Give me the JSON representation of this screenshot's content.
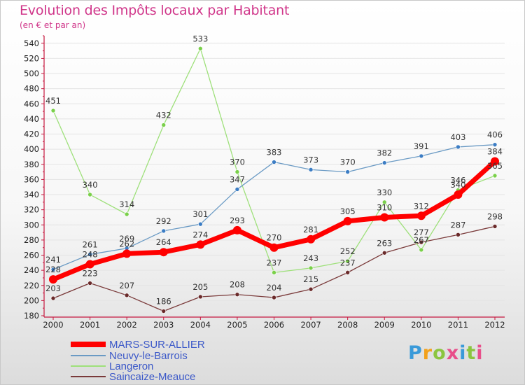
{
  "title": "Evolution des Impôts locaux par Habitant",
  "subtitle": "(en € et par an)",
  "brand": "Proxiti",
  "colors": {
    "title": "#d0368a",
    "axis": "#c6173e",
    "legend_text": "#3b58c8"
  },
  "chart_data": {
    "type": "line",
    "x": [
      "2000",
      "2001",
      "2002",
      "2003",
      "2004",
      "2005",
      "2006",
      "2007",
      "2008",
      "2009",
      "2010",
      "2011",
      "2012"
    ],
    "ylim": [
      180,
      550
    ],
    "yticks": [
      180,
      200,
      220,
      240,
      260,
      280,
      300,
      320,
      340,
      360,
      380,
      400,
      420,
      440,
      460,
      480,
      500,
      520,
      540
    ],
    "grid": "horizontal",
    "legend_position": "bottom-left",
    "series": [
      {
        "name": "MARS-SUR-ALLIER",
        "color": "#ff0000",
        "width": 7,
        "values": [
          228,
          248,
          262,
          264,
          274,
          293,
          270,
          281,
          305,
          310,
          312,
          340,
          384
        ]
      },
      {
        "name": "Neuvy-le-Barrois",
        "color": "#6a9ac4",
        "width": 1.3,
        "values": [
          241,
          261,
          269,
          292,
          301,
          347,
          383,
          373,
          370,
          382,
          391,
          403,
          406
        ]
      },
      {
        "name": "Langeron",
        "color": "#9ee07a",
        "width": 1.3,
        "values": [
          451,
          340,
          314,
          432,
          533,
          370,
          237,
          243,
          252,
          330,
          267,
          346,
          365
        ]
      },
      {
        "name": "Saincaize-Meauce",
        "color": "#7a3a3a",
        "width": 1.3,
        "values": [
          203,
          223,
          207,
          186,
          205,
          208,
          204,
          215,
          237,
          263,
          277,
          287,
          298
        ]
      }
    ]
  }
}
